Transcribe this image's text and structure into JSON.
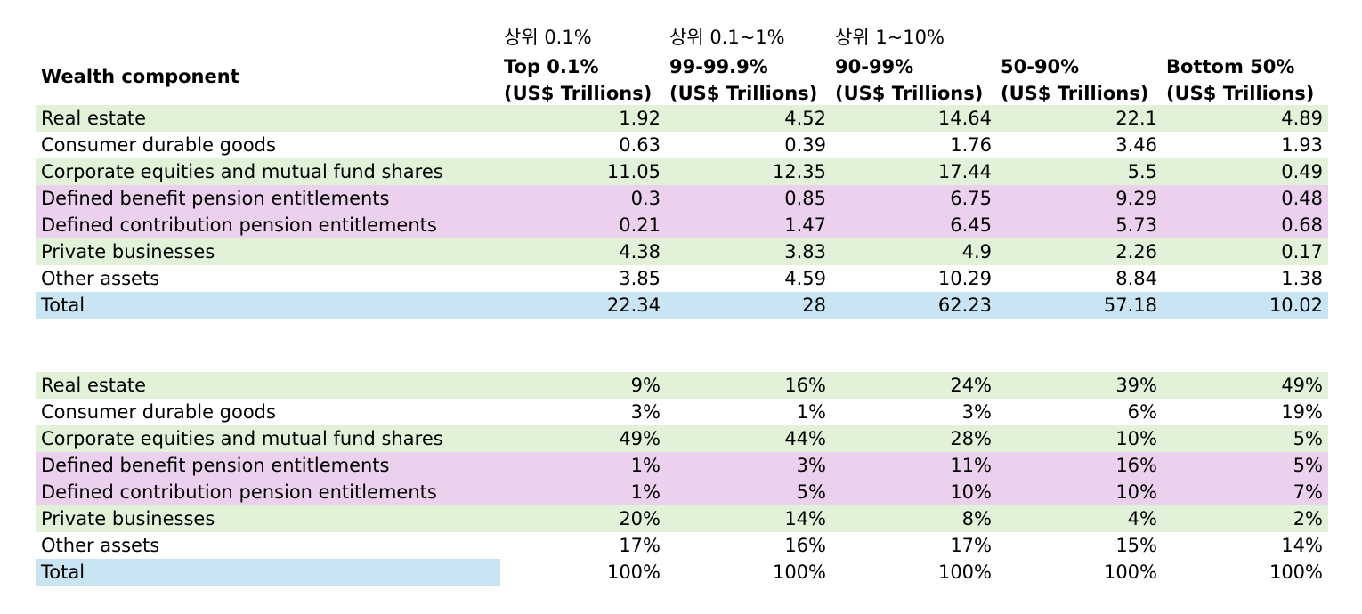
{
  "header": {
    "korean": [
      "상위 0.1%",
      "상위 0.1~1%",
      "상위 1~10%"
    ],
    "wealth_component": "Wealth component",
    "columns": [
      {
        "line1": "Top 0.1%",
        "line2": "(US$ Trillions)"
      },
      {
        "line1": "99-99.9%",
        "line2": "(US$ Trillions)"
      },
      {
        "line1": "90-99%",
        "line2": "(US$ Trillions)"
      },
      {
        "line1": "50-90%",
        "line2": "(US$ Trillions)"
      },
      {
        "line1": "Bottom 50%",
        "line2": "(US$ Trillions)"
      }
    ]
  },
  "amounts": [
    {
      "label": "Real estate",
      "color": "#e1f2d8",
      "v": [
        "1.92",
        "4.52",
        "14.64",
        "22.1",
        "4.89"
      ]
    },
    {
      "label": "Consumer durable goods",
      "color": "#ffffff",
      "v": [
        "0.63",
        "0.39",
        "1.76",
        "3.46",
        "1.93"
      ]
    },
    {
      "label": "Corporate equities and mutual fund shares",
      "color": "#e1f2d8",
      "v": [
        "11.05",
        "12.35",
        "17.44",
        "5.5",
        "0.49"
      ]
    },
    {
      "label": "Defined benefit pension entitlements",
      "color": "#ebd1ee",
      "v": [
        "0.3",
        "0.85",
        "6.75",
        "9.29",
        "0.48"
      ]
    },
    {
      "label": "Defined contribution pension entitlements",
      "color": "#ebd1ee",
      "v": [
        "0.21",
        "1.47",
        "6.45",
        "5.73",
        "0.68"
      ]
    },
    {
      "label": "Private businesses",
      "color": "#e1f2d8",
      "v": [
        "4.38",
        "3.83",
        "4.9",
        "2.26",
        "0.17"
      ]
    },
    {
      "label": "Other assets",
      "color": "#ffffff",
      "v": [
        "3.85",
        "4.59",
        "10.29",
        "8.84",
        "1.38"
      ]
    },
    {
      "label": "Total",
      "color": "#c9e4f2",
      "v": [
        "22.34",
        "28",
        "62.23",
        "57.18",
        "10.02"
      ]
    }
  ],
  "shares": [
    {
      "label": "Real estate",
      "color": "#e1f2d8",
      "v": [
        "9%",
        "16%",
        "24%",
        "39%",
        "49%"
      ]
    },
    {
      "label": "Consumer durable goods",
      "color": "#ffffff",
      "v": [
        "3%",
        "1%",
        "3%",
        "6%",
        "19%"
      ]
    },
    {
      "label": "Corporate equities and mutual fund shares",
      "color": "#e1f2d8",
      "v": [
        "49%",
        "44%",
        "28%",
        "10%",
        "5%"
      ]
    },
    {
      "label": "Defined benefit pension entitlements",
      "color": "#ebd1ee",
      "v": [
        "1%",
        "3%",
        "11%",
        "16%",
        "5%"
      ]
    },
    {
      "label": "Defined contribution pension entitlements",
      "color": "#ebd1ee",
      "v": [
        "1%",
        "5%",
        "10%",
        "10%",
        "7%"
      ]
    },
    {
      "label": "Private businesses",
      "color": "#e1f2d8",
      "v": [
        "20%",
        "14%",
        "8%",
        "4%",
        "2%"
      ]
    },
    {
      "label": "Other assets",
      "color": "#ffffff",
      "v": [
        "17%",
        "16%",
        "17%",
        "15%",
        "14%"
      ]
    },
    {
      "label": "Total",
      "color": "#c9e4f2",
      "v": [
        "100%",
        "100%",
        "100%",
        "100%",
        "100%"
      ]
    }
  ]
}
